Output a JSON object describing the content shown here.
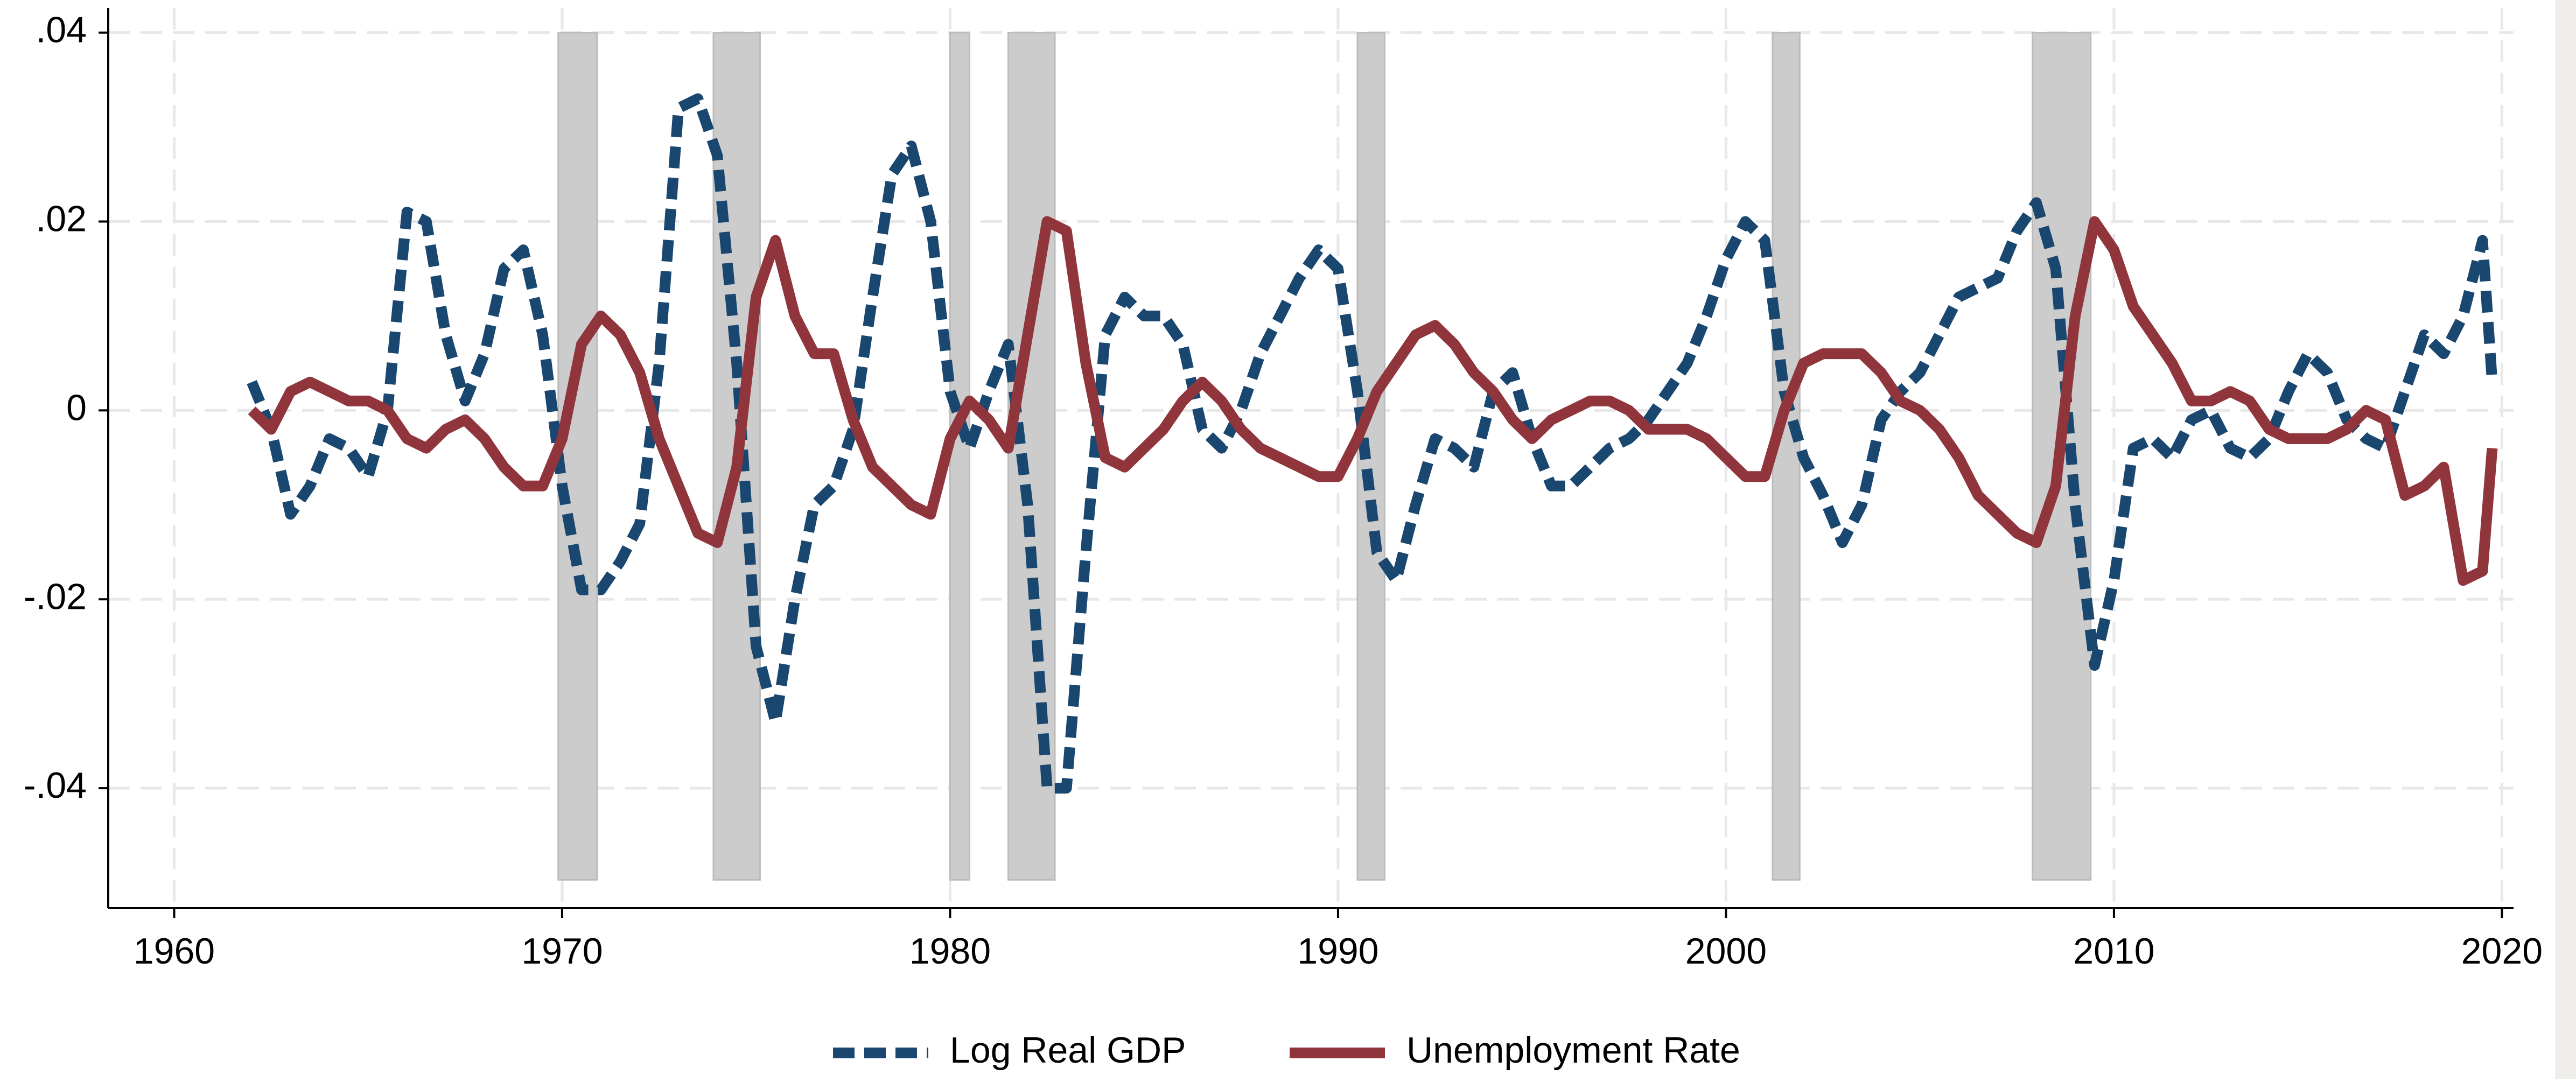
{
  "chart_data": {
    "type": "line",
    "x": [
      1962,
      1962.5,
      1963,
      1963.5,
      1964,
      1964.5,
      1965,
      1965.5,
      1966,
      1966.5,
      1967,
      1967.5,
      1968,
      1968.5,
      1969,
      1969.5,
      1970,
      1970.5,
      1971,
      1971.5,
      1972,
      1972.5,
      1973,
      1973.5,
      1974,
      1974.5,
      1975,
      1975.5,
      1976,
      1976.5,
      1977,
      1977.5,
      1978,
      1978.5,
      1979,
      1979.5,
      1980,
      1980.5,
      1981,
      1981.5,
      1982,
      1982.5,
      1983,
      1983.5,
      1984,
      1984.5,
      1985,
      1985.5,
      1986,
      1986.5,
      1987,
      1987.5,
      1988,
      1988.5,
      1989,
      1989.5,
      1990,
      1990.5,
      1991,
      1991.5,
      1992,
      1992.5,
      1993,
      1993.5,
      1994,
      1994.5,
      1995,
      1995.5,
      1996,
      1996.5,
      1997,
      1997.5,
      1998,
      1998.5,
      1999,
      1999.5,
      2000,
      2000.5,
      2001,
      2001.5,
      2002,
      2002.5,
      2003,
      2003.5,
      2004,
      2004.5,
      2005,
      2005.5,
      2006,
      2006.5,
      2007,
      2007.5,
      2008,
      2008.5,
      2009,
      2009.5,
      2010,
      2010.5,
      2011,
      2011.5,
      2012,
      2012.5,
      2013,
      2013.5,
      2014,
      2014.5,
      2015,
      2015.5,
      2016,
      2016.5,
      2017,
      2017.5,
      2018,
      2018.5,
      2019,
      2019.5,
      2019.75
    ],
    "series": [
      {
        "name": "Log Real GDP",
        "color": "#1a476f",
        "dash": true,
        "values": [
          0.003,
          -0.002,
          -0.011,
          -0.008,
          -0.003,
          -0.004,
          -0.007,
          0.0,
          0.021,
          0.02,
          0.008,
          0.001,
          0.006,
          0.015,
          0.017,
          0.008,
          -0.008,
          -0.019,
          -0.019,
          -0.016,
          -0.012,
          0.005,
          0.032,
          0.033,
          0.027,
          0.005,
          -0.025,
          -0.033,
          -0.02,
          -0.01,
          -0.008,
          -0.002,
          0.012,
          0.025,
          0.028,
          0.02,
          0.002,
          -0.004,
          0.002,
          0.007,
          -0.01,
          -0.04,
          -0.04,
          -0.015,
          0.008,
          0.012,
          0.01,
          0.01,
          0.007,
          -0.002,
          -0.004,
          0.0,
          0.006,
          0.01,
          0.014,
          0.017,
          0.015,
          0.002,
          -0.015,
          -0.018,
          -0.01,
          -0.003,
          -0.004,
          -0.006,
          0.002,
          0.004,
          -0.003,
          -0.008,
          -0.008,
          -0.006,
          -0.004,
          -0.003,
          -0.001,
          0.002,
          0.005,
          0.01,
          0.016,
          0.02,
          0.018,
          0.002,
          -0.005,
          -0.009,
          -0.014,
          -0.01,
          -0.001,
          0.002,
          0.004,
          0.008,
          0.012,
          0.013,
          0.014,
          0.019,
          0.022,
          0.015,
          -0.01,
          -0.027,
          -0.018,
          -0.004,
          -0.003,
          -0.005,
          -0.001,
          0.0,
          -0.004,
          -0.005,
          -0.003,
          0.002,
          0.006,
          0.004,
          -0.001,
          -0.003,
          -0.004,
          0.002,
          0.008,
          0.006,
          0.01,
          0.018,
          0.003
        ]
      },
      {
        "name": "Unemployment Rate",
        "color": "#90353b",
        "dash": false,
        "values": [
          0.0,
          -0.002,
          0.002,
          0.003,
          0.002,
          0.001,
          0.001,
          0.0,
          -0.003,
          -0.004,
          -0.002,
          -0.001,
          -0.003,
          -0.006,
          -0.008,
          -0.008,
          -0.003,
          0.007,
          0.01,
          0.008,
          0.004,
          -0.003,
          -0.008,
          -0.013,
          -0.014,
          -0.006,
          0.012,
          0.018,
          0.01,
          0.006,
          0.006,
          -0.001,
          -0.006,
          -0.008,
          -0.01,
          -0.011,
          -0.003,
          0.001,
          -0.001,
          -0.004,
          0.008,
          0.02,
          0.019,
          0.005,
          -0.005,
          -0.006,
          -0.004,
          -0.002,
          0.001,
          0.003,
          0.001,
          -0.002,
          -0.004,
          -0.005,
          -0.006,
          -0.007,
          -0.007,
          -0.003,
          0.002,
          0.005,
          0.008,
          0.009,
          0.007,
          0.004,
          0.002,
          -0.001,
          -0.003,
          -0.001,
          0.0,
          0.001,
          0.001,
          0.0,
          -0.002,
          -0.002,
          -0.002,
          -0.003,
          -0.005,
          -0.007,
          -0.007,
          0.0,
          0.005,
          0.006,
          0.006,
          0.006,
          0.004,
          0.001,
          0.0,
          -0.002,
          -0.005,
          -0.009,
          -0.011,
          -0.013,
          -0.014,
          -0.008,
          0.01,
          0.02,
          0.017,
          0.011,
          0.008,
          0.005,
          0.001,
          0.001,
          0.002,
          0.001,
          -0.002,
          -0.003,
          -0.003,
          -0.003,
          -0.002,
          0.0,
          -0.001,
          -0.009,
          -0.008,
          -0.006,
          -0.018,
          -0.017,
          -0.004
        ]
      }
    ],
    "recessions": [
      [
        1969.9,
        1970.9
      ],
      [
        1973.9,
        1975.1
      ],
      [
        1980.0,
        1980.5
      ],
      [
        1981.5,
        1982.7
      ],
      [
        1990.5,
        1991.2
      ],
      [
        2001.2,
        2001.9
      ],
      [
        2007.9,
        2009.4
      ]
    ],
    "recession_range": [
      -0.0497,
      0.04
    ],
    "recession_color": "#cccccc",
    "xlim": [
      1958.3,
      2020.3
    ],
    "xticks": [
      1960,
      1970,
      1980,
      1990,
      2000,
      2010,
      2020
    ],
    "ylim": [
      -0.0527,
      0.0426
    ],
    "yticks": [
      {
        "value": -0.04,
        "label": "-.04"
      },
      {
        "value": -0.02,
        "label": "-.02"
      },
      0,
      {
        "value": 0.02,
        "label": ".02"
      },
      {
        "value": 0.04,
        "label": ".04"
      }
    ],
    "grid": true,
    "legend": "bottom"
  }
}
